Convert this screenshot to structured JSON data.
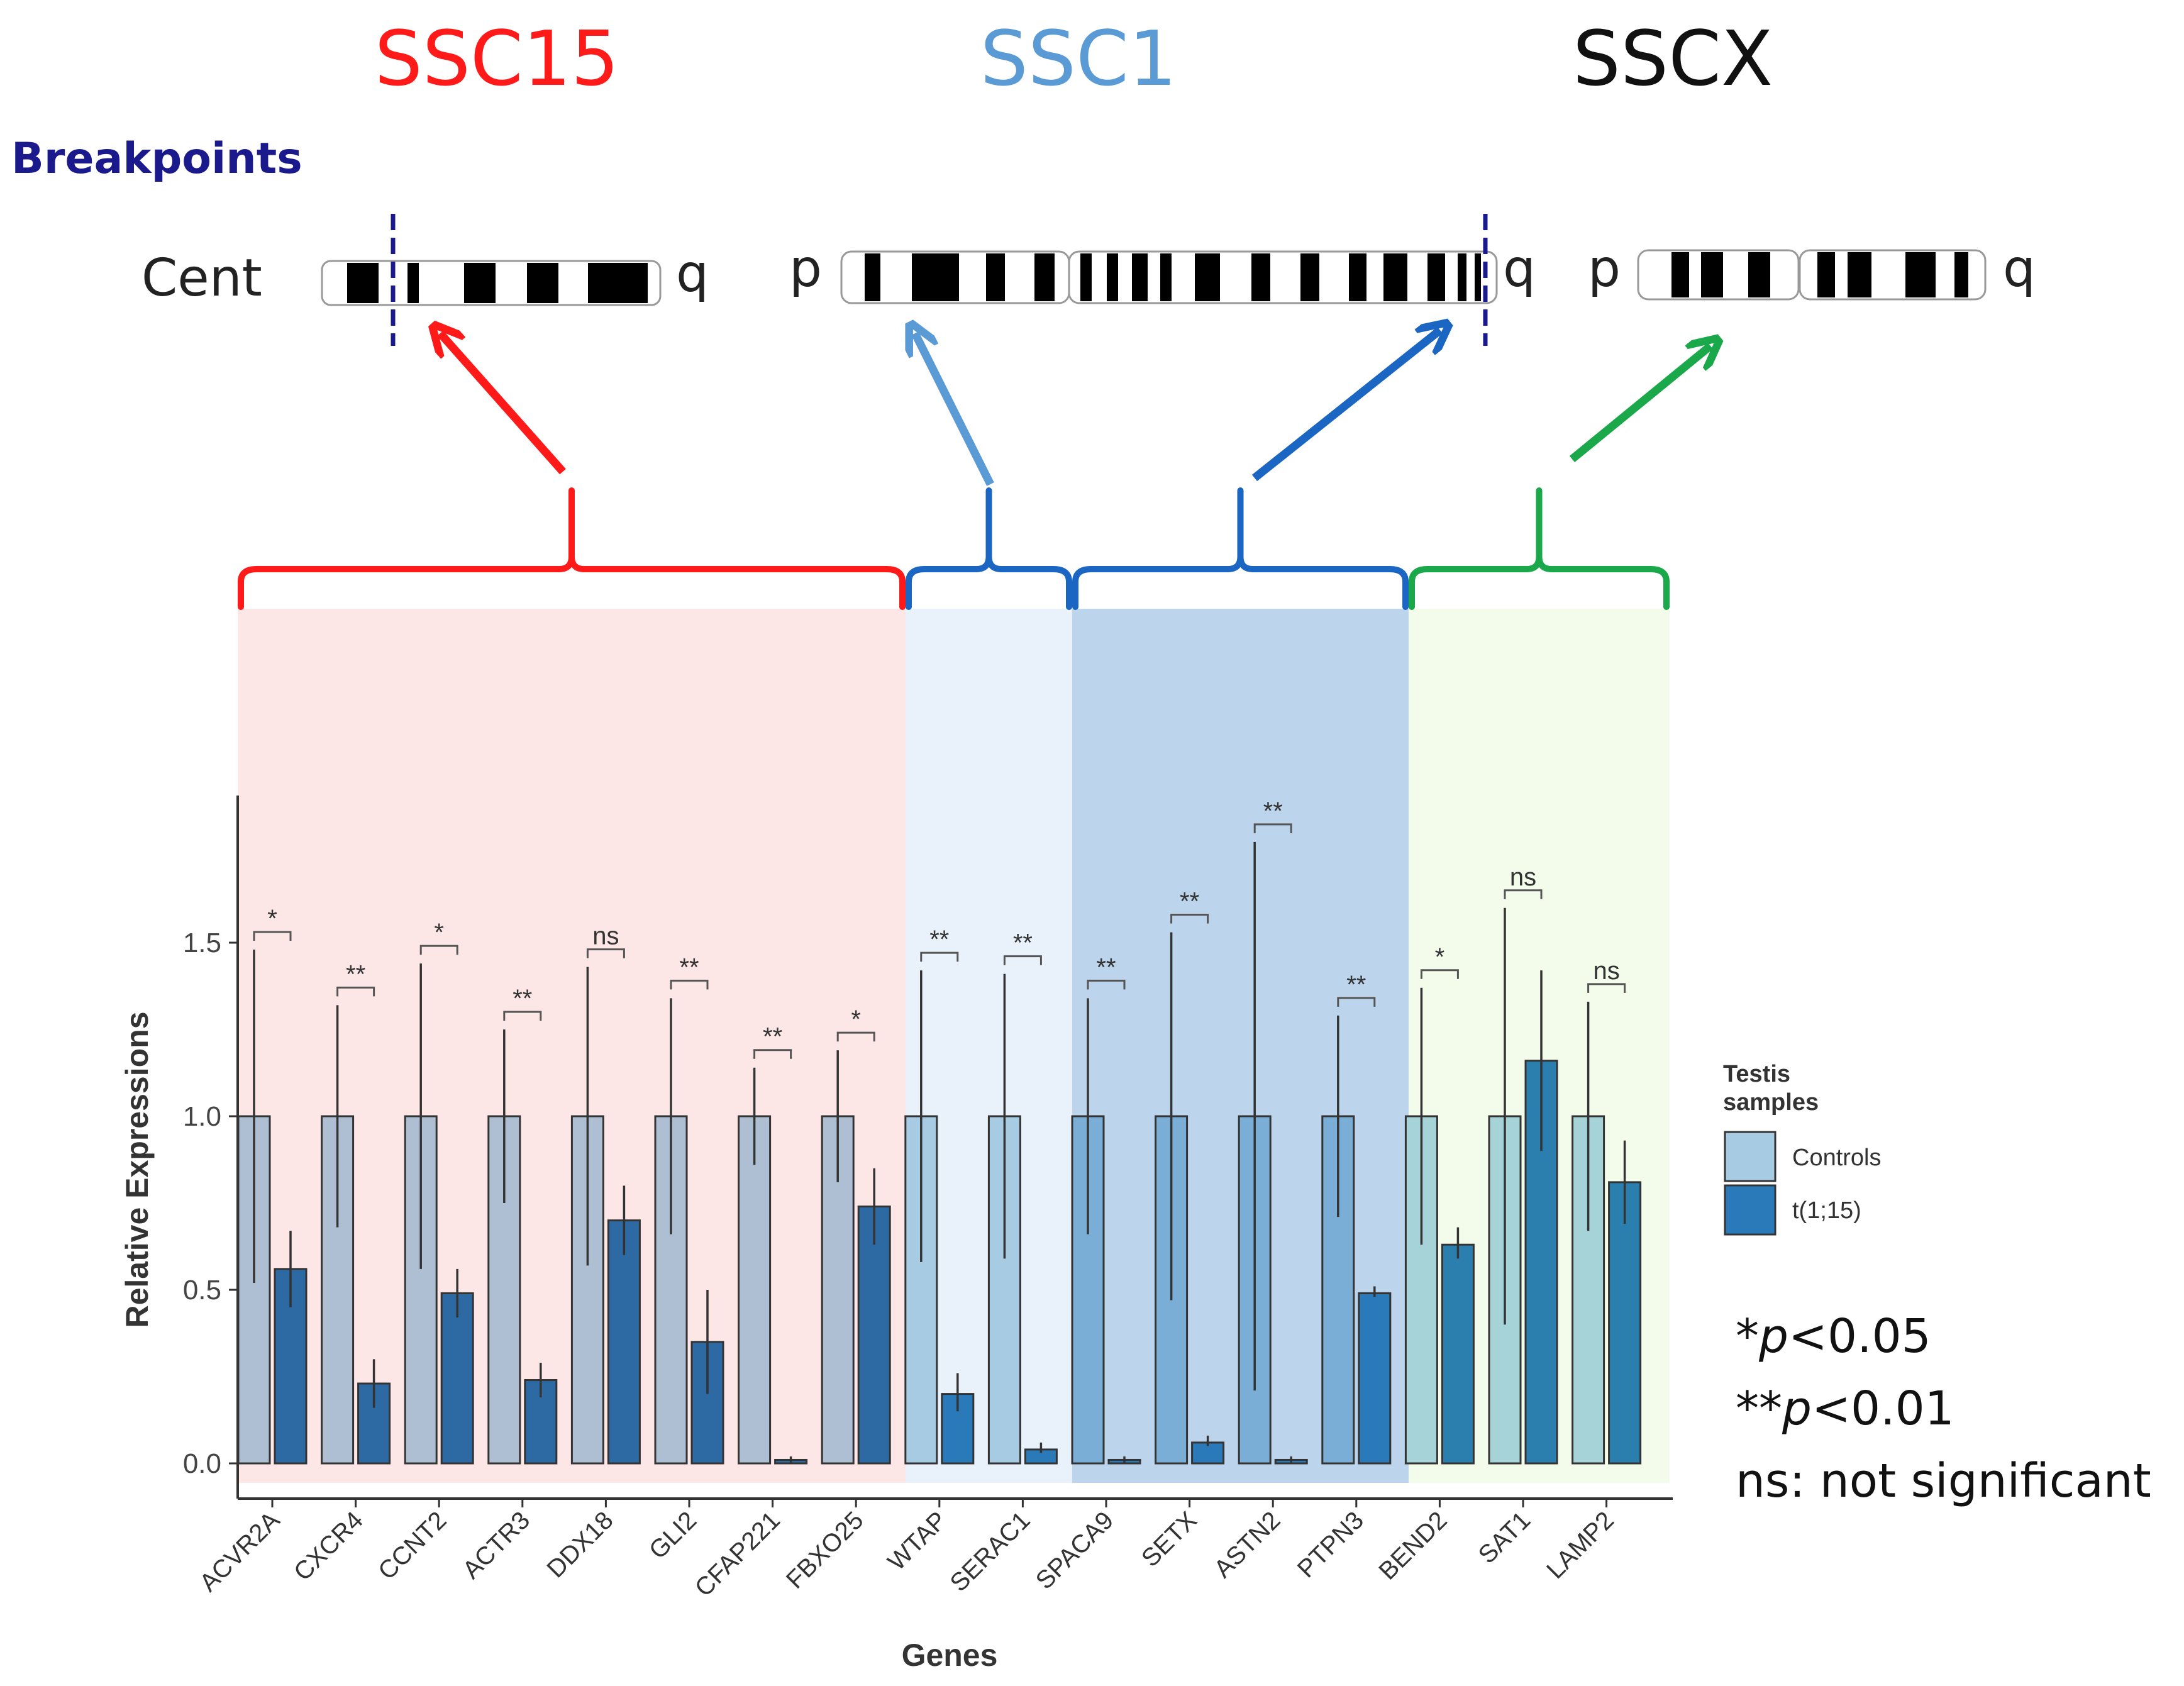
{
  "chromosome_titles": [
    {
      "text": "SSC15",
      "color": "#ff1a1a"
    },
    {
      "text": "SSC1",
      "color": "#5b9bd5"
    },
    {
      "text": "SSCX",
      "color": "#111111"
    }
  ],
  "breakpoints_label": "Breakpoints",
  "ideogram_labels": {
    "cent": "Cent",
    "p": "p",
    "q": "q"
  },
  "group_colors": {
    "ssc15": "#ff1a1a",
    "ssc1_p": "#1a66c2",
    "ssc1_q": "#1a66c2",
    "sscx": "#1aa84a",
    "ssc1_p_arrow": "#5b9bd5",
    "breakpoint": "#1a1a8c"
  },
  "chart_data": {
    "type": "bar",
    "xlabel": "Genes",
    "ylabel": "Relative Expressions",
    "ylim": [
      0,
      1.9
    ],
    "yticks": [
      "0.0",
      "0.5",
      "1.0",
      "1.5"
    ],
    "categories": [
      "ACVR2A",
      "CXCR4",
      "CCNT2",
      "ACTR3",
      "DDX18",
      "GLI2",
      "CFAP221",
      "FBXO25",
      "WTAP",
      "SERAC1",
      "SPACA9",
      "SETX",
      "ASTN2",
      "PTPN3",
      "BEND2",
      "SAT1",
      "LAMP2"
    ],
    "groups": [
      "SSC15",
      "SSC15",
      "SSC15",
      "SSC15",
      "SSC15",
      "SSC15",
      "SSC15",
      "SSC15",
      "SSC1-p",
      "SSC1-p",
      "SSC1-q",
      "SSC1-q",
      "SSC1-q",
      "SSC1-q",
      "SSCX",
      "SSCX",
      "SSCX"
    ],
    "series": [
      {
        "name": "Controls",
        "values": [
          1,
          1,
          1,
          1,
          1,
          1,
          1,
          1,
          1,
          1,
          1,
          1,
          1,
          1,
          1,
          1,
          1
        ],
        "err_low": [
          0.52,
          0.68,
          0.56,
          0.75,
          0.57,
          0.66,
          0.86,
          0.81,
          0.58,
          0.59,
          0.66,
          0.47,
          0.21,
          0.71,
          0.63,
          0.4,
          0.67
        ],
        "err_high": [
          1.48,
          1.32,
          1.44,
          1.25,
          1.43,
          1.34,
          1.14,
          1.19,
          1.42,
          1.41,
          1.34,
          1.53,
          1.79,
          1.29,
          1.37,
          1.6,
          1.33
        ]
      },
      {
        "name": "t(1;15)",
        "values": [
          0.56,
          0.23,
          0.49,
          0.24,
          0.7,
          0.35,
          0.01,
          0.74,
          0.2,
          0.04,
          0.01,
          0.06,
          0.01,
          0.49,
          0.63,
          1.16,
          0.81
        ],
        "err_low": [
          0.45,
          0.16,
          0.42,
          0.19,
          0.6,
          0.2,
          0.0,
          0.63,
          0.15,
          0.03,
          0.0,
          0.05,
          0.0,
          0.48,
          0.59,
          0.9,
          0.69
        ],
        "err_high": [
          0.67,
          0.3,
          0.56,
          0.29,
          0.8,
          0.5,
          0.02,
          0.85,
          0.26,
          0.06,
          0.02,
          0.08,
          0.02,
          0.51,
          0.68,
          1.42,
          0.93
        ]
      }
    ],
    "significance": [
      "*",
      "**",
      "*",
      "**",
      "ns",
      "**",
      "**",
      "*",
      "**",
      "**",
      "**",
      "**",
      "**",
      "**",
      "*",
      "ns",
      "ns"
    ],
    "legend": {
      "title_line1": "Testis",
      "title_line2": "samples",
      "items": [
        "Controls",
        "t(1;15)"
      ],
      "position": "right"
    },
    "notes": [
      {
        "stars": "*",
        "p": "p",
        "rest": "<0.05"
      },
      {
        "stars": "**",
        "p": "p",
        "rest": "<0.01"
      },
      {
        "text": "ns: not significant"
      }
    ]
  }
}
